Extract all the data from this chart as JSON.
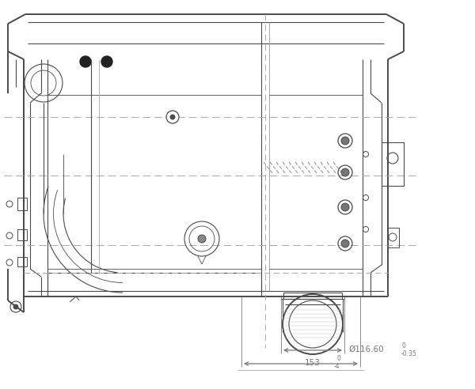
{
  "bg_color": "#ffffff",
  "lc": "#4a4a4a",
  "lc2": "#666666",
  "dc": "#aaaaaa",
  "dimc": "#777777",
  "figsize": [
    6.0,
    4.92
  ],
  "dpi": 100,
  "dim_text_1": "Ø116.60",
  "dim_tol_1_upper": "0",
  "dim_tol_1_lower": "-0.35",
  "dim_text_2": "153",
  "dim_tol_2_upper": "0",
  "dim_tol_2_lower": "-4"
}
